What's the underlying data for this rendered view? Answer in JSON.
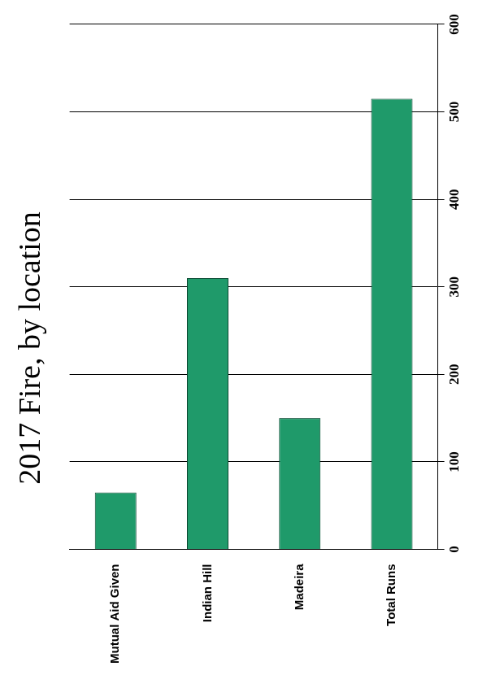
{
  "chart_data": {
    "type": "bar",
    "orientation": "horizontal",
    "title": "2017 Fire, by location",
    "categories": [
      "Mutual Aid Given",
      "Indian Hill",
      "Madeira",
      "Total Runs"
    ],
    "values": [
      65,
      310,
      150,
      515
    ],
    "color": "#1f9a6a",
    "xlim": [
      0,
      600
    ],
    "xticks": [
      0,
      100,
      200,
      300,
      400,
      500,
      600
    ],
    "grid": true
  }
}
